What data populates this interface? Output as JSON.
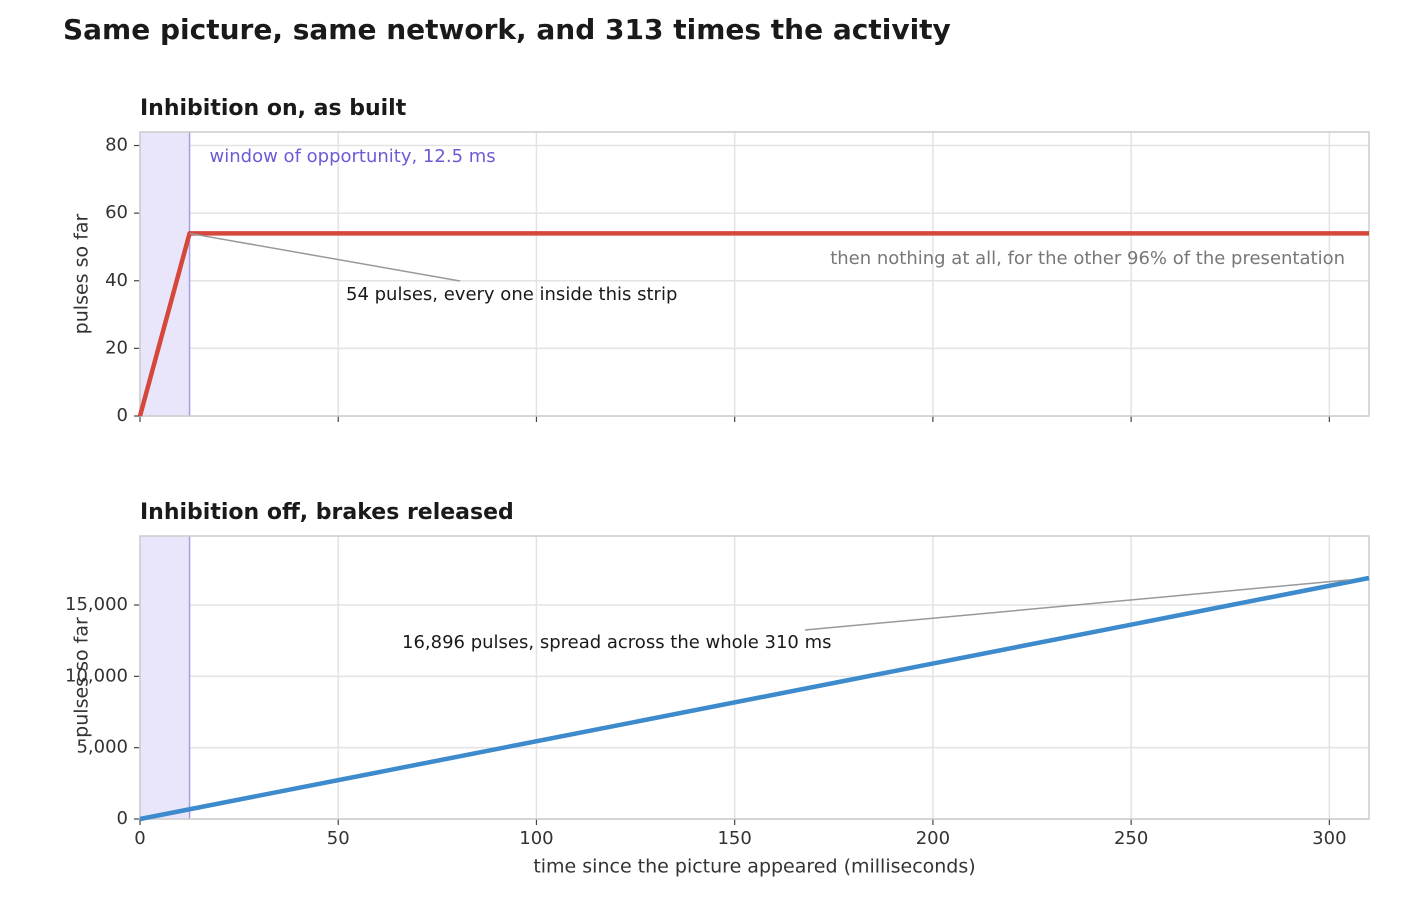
{
  "title": "Same picture, same network, and 313 times the activity",
  "chart_data": [
    {
      "type": "line",
      "title": "Inhibition on, as built",
      "ylabel": "pulses so far",
      "x": [
        0,
        12.5,
        310
      ],
      "series": [
        {
          "name": "inhibition on",
          "color": "#d6473b",
          "values": [
            0,
            54,
            54
          ]
        }
      ],
      "xlim": [
        0,
        310
      ],
      "xticks": [
        0,
        50,
        100,
        150,
        200,
        250,
        300
      ],
      "ylim": [
        0,
        84
      ],
      "yticks": [
        0,
        20,
        40,
        60,
        80
      ],
      "grid": true,
      "window": [
        0,
        12.5
      ],
      "window_label": "window of opportunity, 12.5 ms",
      "annotations": [
        "54 pulses, every one inside this strip",
        "then nothing at all, for the other 96% of the presentation"
      ]
    },
    {
      "type": "line",
      "title": "Inhibition off, brakes released",
      "ylabel": "pulses so far",
      "xlabel": "time since the picture appeared  (milliseconds)",
      "x": [
        0,
        310
      ],
      "series": [
        {
          "name": "inhibition off",
          "color": "#3d8bcd",
          "values": [
            0,
            16896
          ]
        }
      ],
      "xlim": [
        0,
        310
      ],
      "xticks": [
        0,
        50,
        100,
        150,
        200,
        250,
        300
      ],
      "ylim": [
        0,
        19840
      ],
      "yticks": [
        0,
        {
          "value": 5000,
          "label": "5,000"
        },
        {
          "value": 10000,
          "label": "10,000"
        },
        {
          "value": 15000,
          "label": "15,000"
        }
      ],
      "grid": true,
      "window": [
        0,
        12.5
      ],
      "annotations": [
        "16,896 pulses, spread across the whole 310 ms"
      ]
    }
  ]
}
